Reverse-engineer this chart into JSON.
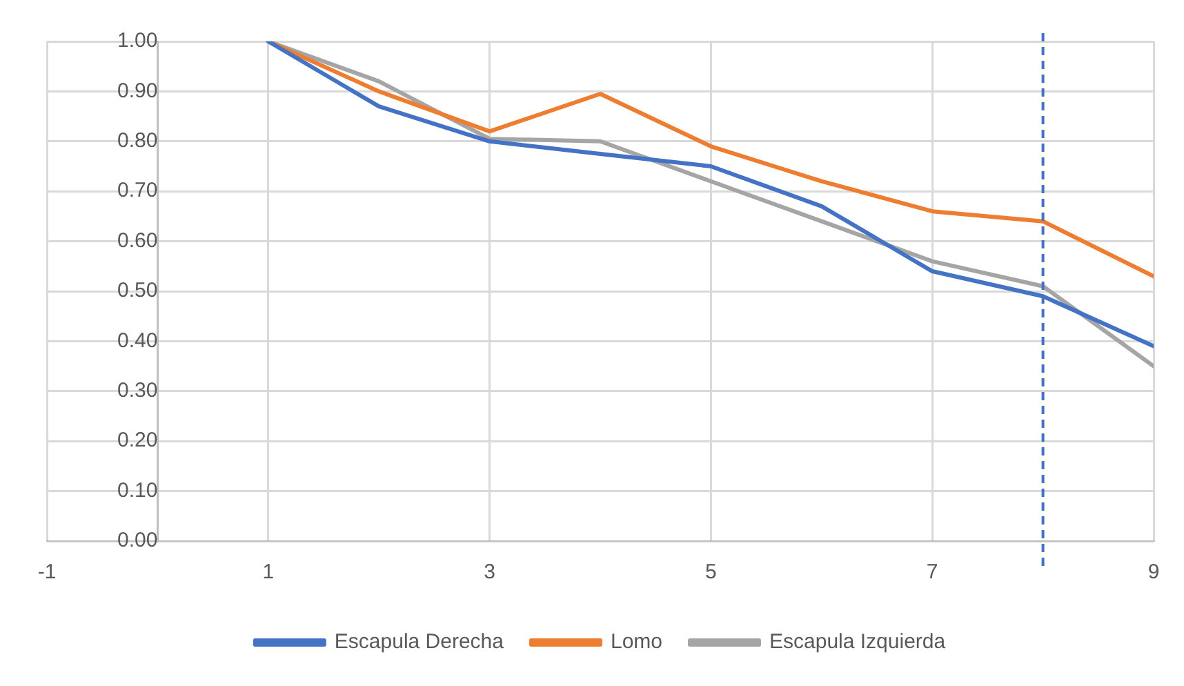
{
  "chart_data": {
    "type": "line",
    "x": [
      1,
      2,
      3,
      4,
      5,
      6,
      7,
      8,
      9
    ],
    "series": [
      {
        "name": "Escapula Derecha",
        "color": "#4472c4",
        "values": [
          1.0,
          0.87,
          0.8,
          0.775,
          0.75,
          0.67,
          0.54,
          0.49,
          0.39
        ]
      },
      {
        "name": "Lomo",
        "color": "#ed7d31",
        "values": [
          1.0,
          0.9,
          0.82,
          0.895,
          0.79,
          0.72,
          0.66,
          0.64,
          0.53
        ]
      },
      {
        "name": "Escapula Izquierda",
        "color": "#a5a5a5",
        "values": [
          1.0,
          0.92,
          0.805,
          0.8,
          0.72,
          0.64,
          0.56,
          0.51,
          0.35
        ]
      }
    ],
    "xlim": [
      -1,
      9
    ],
    "xticks": [
      -1,
      1,
      3,
      5,
      7,
      9
    ],
    "ylim": [
      0,
      1
    ],
    "yticks": [
      {
        "value": 0,
        "label": "0.00"
      },
      {
        "value": 0.1,
        "label": "0.10"
      },
      {
        "value": 0.2,
        "label": "0.20"
      },
      {
        "value": 0.3,
        "label": "0.30"
      },
      {
        "value": 0.4,
        "label": "0.40"
      },
      {
        "value": 0.5,
        "label": "0.50"
      },
      {
        "value": 0.6,
        "label": "0.60"
      },
      {
        "value": 0.7,
        "label": "0.70"
      },
      {
        "value": 0.8,
        "label": "0.80"
      },
      {
        "value": 0.9,
        "label": "0.90"
      },
      {
        "value": 1,
        "label": "1.00"
      }
    ],
    "ref_lines": [
      {
        "axis": "x",
        "value": 8,
        "label": null,
        "color": "#4472c4",
        "line_style": "dashed"
      }
    ],
    "grid": true,
    "legend": "bottom",
    "marker": "none",
    "line_style": "solid"
  }
}
